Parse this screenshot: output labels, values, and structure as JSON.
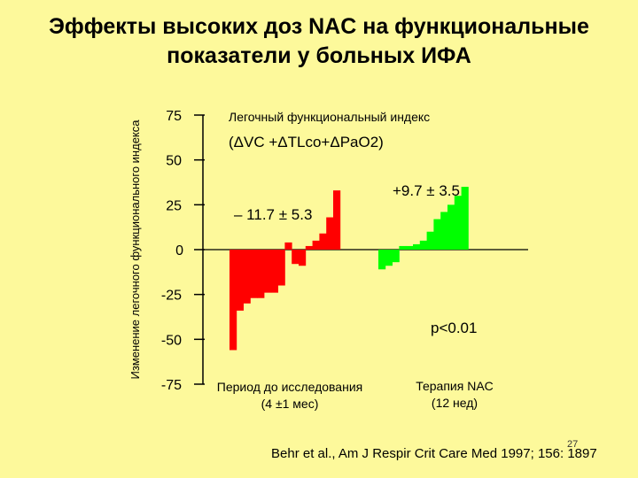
{
  "title_line1": "Эффекты высоких доз NAC на функциональные",
  "title_line2": "показатели у больных ИФА",
  "slide_number": "27",
  "citation": "Behr et al., Am J Respir Crit Care Med 1997; 156: 1897",
  "colors": {
    "background": "#fdf99b",
    "period_before": "#ff0000",
    "period_nac": "#00ff00"
  },
  "chart_data": {
    "type": "bar",
    "ylabel": "Изменение легочного функционального индекса",
    "ylim": [
      -75,
      75
    ],
    "yticks": [
      {
        "value": 75,
        "label": "75"
      },
      {
        "value": 50,
        "label": "50"
      },
      {
        "value": 25,
        "label": "25"
      },
      {
        "value": 0,
        "label": "0"
      },
      {
        "value": -25,
        "label": "-25"
      },
      {
        "value": -50,
        "label": "-50"
      },
      {
        "value": -75,
        "label": "-75"
      }
    ],
    "annotation_index": "Легочный функциональный индекс",
    "annotation_formula": "(ΔVC +ΔTLco+ΔPaO2)",
    "series": [
      {
        "category_line1": "Период до исследования",
        "category_line2": "(4 ±1 мес)",
        "color": "#ff0000",
        "mean_label": "– 11.7 ± 5.3",
        "values": [
          -56,
          -34,
          -30,
          -27,
          -27,
          -24,
          -24,
          -20,
          4,
          -8,
          -9,
          2,
          5,
          9,
          18,
          33
        ]
      },
      {
        "category_line1": "Терапия NAC",
        "category_line2": "(12 нед)",
        "color": "#00ff00",
        "mean_label": "+9.7 ± 3.5",
        "values": [
          -11,
          -9,
          -7,
          2,
          2,
          3,
          5,
          10,
          17,
          21,
          25,
          30,
          35
        ]
      }
    ],
    "p_value": "p<0.01"
  }
}
